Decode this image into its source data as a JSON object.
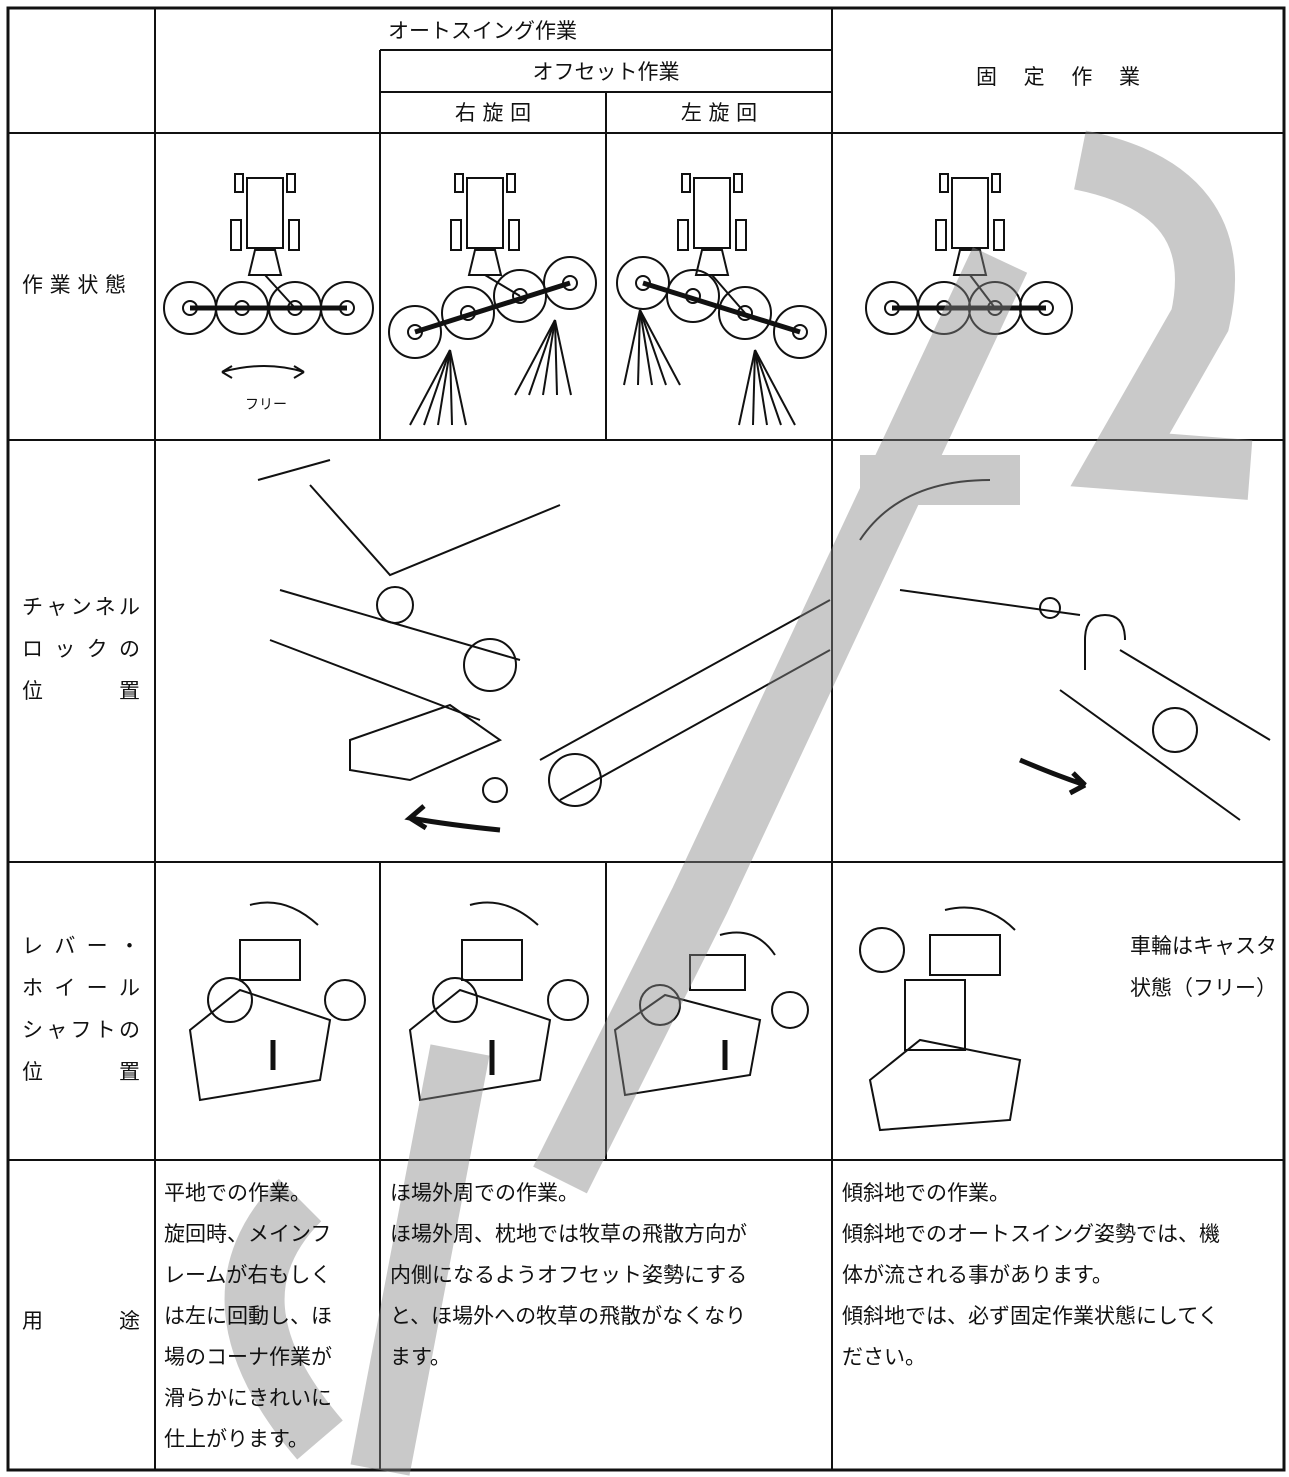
{
  "header": {
    "auto_swing": "オートスイング作業",
    "offset": "オフセット作業",
    "right_turn": "右 旋 回",
    "left_turn": "左 旋 回",
    "fixed": "固 定 作 業"
  },
  "rows": [
    {
      "label": "作 業 状 態",
      "note": "フリー"
    },
    {
      "label": [
        "チャンネル",
        "ロックの",
        "位　置"
      ]
    },
    {
      "label": [
        "レバー・",
        "ホイール",
        "シャフトの",
        "位　置"
      ],
      "note": [
        "車輪はキャスタ",
        "状態（フリー）"
      ]
    },
    {
      "label": "用　途",
      "cells": [
        [
          "平地での作業。",
          "旋回時、メインフ",
          "レームが右もしく",
          "は左に回動し、ほ",
          "場のコーナ作業が",
          "滑らかにきれいに",
          "仕上がります。"
        ],
        [
          "ほ場外周での作業。",
          "ほ場外周、枕地では牧草の飛散方向が",
          "内側になるようオフセット姿勢にする",
          "と、ほ場外への牧草の飛散がなくなり",
          "ます。"
        ],
        [
          "傾斜地での作業。",
          "傾斜地でのオートスイング姿勢では、機",
          "体が流される事があります。",
          "傾斜地では、必ず固定作業状態にしてく",
          "ださい。"
        ]
      ]
    }
  ]
}
